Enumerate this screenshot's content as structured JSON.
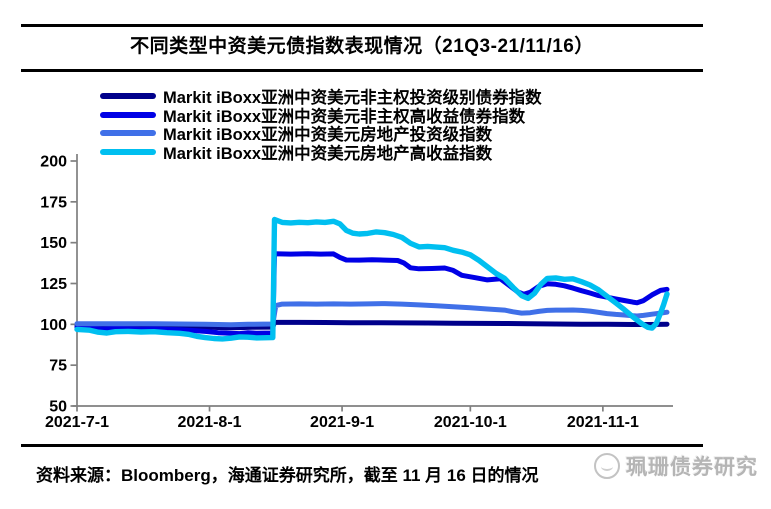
{
  "title": "不同类型中资美元债指数表现情况（21Q3-21/11/16）",
  "footer": {
    "source_text": "资料来源：Bloomberg，海通证券研究所，截至 11 月 16 日的情况"
  },
  "watermark": {
    "text": "珮珊债券研究"
  },
  "chart_data": {
    "type": "line",
    "title": "不同类型中资美元债指数表现情况（21Q3-21/11/16）",
    "xlabel": "",
    "ylabel": "",
    "ylim": [
      50,
      200
    ],
    "y_ticks": [
      200,
      175,
      150,
      125,
      100,
      75,
      50
    ],
    "x_unit": "days since 2021-07-01",
    "x_max": 138,
    "x_ticks": [
      {
        "label": "2021-7-1",
        "day": 0
      },
      {
        "label": "2021-8-1",
        "day": 31
      },
      {
        "label": "2021-9-1",
        "day": 62
      },
      {
        "label": "2021-10-1",
        "day": 92
      },
      {
        "label": "2021-11-1",
        "day": 123
      }
    ],
    "grid": false,
    "legend_position": "top-left",
    "axis_color": "#7f7f7f",
    "series": [
      {
        "name": "Markit iBoxx亚洲中资美元非主权投资级别债券指数",
        "color": "#00008B",
        "points": [
          [
            0,
            99
          ],
          [
            4,
            98.8
          ],
          [
            8,
            98.4
          ],
          [
            12,
            98.9
          ],
          [
            16,
            99
          ],
          [
            20,
            98.9
          ],
          [
            24,
            98.7
          ],
          [
            28,
            98.5
          ],
          [
            32,
            98.1
          ],
          [
            35,
            97.9
          ],
          [
            38,
            98
          ],
          [
            41,
            98.2
          ],
          [
            45.8,
            98.3
          ],
          [
            46.2,
            101.2
          ],
          [
            52,
            101.2
          ],
          [
            58,
            101.1
          ],
          [
            64,
            101
          ],
          [
            70,
            101
          ],
          [
            76,
            100.9
          ],
          [
            82,
            100.8
          ],
          [
            88,
            100.7
          ],
          [
            94,
            100.6
          ],
          [
            100,
            100.5
          ],
          [
            106,
            100.3
          ],
          [
            112,
            100.2
          ],
          [
            118,
            100.1
          ],
          [
            124,
            100
          ],
          [
            130,
            99.9
          ],
          [
            134,
            99.9
          ],
          [
            138,
            100.1
          ]
        ]
      },
      {
        "name": "Markit iBoxx亚洲中资美元非主权高收益债券指数",
        "color": "#0000E6",
        "points": [
          [
            0,
            98.2
          ],
          [
            3,
            97.9
          ],
          [
            6,
            97.1
          ],
          [
            9,
            97.5
          ],
          [
            12,
            97.3
          ],
          [
            15,
            97.1
          ],
          [
            18,
            97.2
          ],
          [
            21,
            96.9
          ],
          [
            24,
            96.7
          ],
          [
            27,
            96.2
          ],
          [
            30,
            95.7
          ],
          [
            33,
            94.9
          ],
          [
            36,
            94.5
          ],
          [
            38,
            94.3
          ],
          [
            40,
            94.9
          ],
          [
            42,
            94.5
          ],
          [
            45.8,
            94.7
          ],
          [
            46.2,
            143.2
          ],
          [
            50,
            143
          ],
          [
            54,
            143.2
          ],
          [
            57,
            143
          ],
          [
            60,
            143.1
          ],
          [
            61.5,
            141
          ],
          [
            63,
            139.4
          ],
          [
            66,
            139.3
          ],
          [
            69,
            139.6
          ],
          [
            72,
            139.3
          ],
          [
            75,
            139.1
          ],
          [
            76.5,
            137.5
          ],
          [
            78,
            134.6
          ],
          [
            80,
            134
          ],
          [
            83,
            134.2
          ],
          [
            86,
            134.5
          ],
          [
            88,
            133
          ],
          [
            90,
            130
          ],
          [
            93,
            128.6
          ],
          [
            96,
            127.2
          ],
          [
            99,
            127.9
          ],
          [
            101,
            124
          ],
          [
            103,
            120
          ],
          [
            104.5,
            118.4
          ],
          [
            106,
            119.6
          ],
          [
            108,
            123.2
          ],
          [
            110,
            124.9
          ],
          [
            112,
            124.5
          ],
          [
            114,
            123.6
          ],
          [
            116,
            122.2
          ],
          [
            118,
            120.6
          ],
          [
            120,
            119.2
          ],
          [
            122,
            117.6
          ],
          [
            124,
            116.6
          ],
          [
            126,
            115.6
          ],
          [
            128,
            114.6
          ],
          [
            130,
            113.6
          ],
          [
            131,
            113.2
          ],
          [
            132.5,
            114.5
          ],
          [
            134.5,
            118
          ],
          [
            136.5,
            120.8
          ],
          [
            138,
            121.4
          ]
        ]
      },
      {
        "name": "Markit iBoxx亚洲中资美元房地产投资级指数",
        "color": "#4070E8",
        "points": [
          [
            0,
            100.4
          ],
          [
            6,
            100.3
          ],
          [
            12,
            100.4
          ],
          [
            18,
            100.3
          ],
          [
            24,
            100.2
          ],
          [
            30,
            100
          ],
          [
            36,
            99.8
          ],
          [
            40,
            100
          ],
          [
            45.8,
            100.2
          ],
          [
            46.5,
            111.5
          ],
          [
            48,
            112.4
          ],
          [
            52,
            112.5
          ],
          [
            56,
            112.4
          ],
          [
            60,
            112.5
          ],
          [
            64,
            112.4
          ],
          [
            68,
            112.5
          ],
          [
            72,
            112.7
          ],
          [
            76,
            112.4
          ],
          [
            80,
            111.9
          ],
          [
            84,
            111.4
          ],
          [
            88,
            110.8
          ],
          [
            92,
            110.2
          ],
          [
            96,
            109.4
          ],
          [
            100,
            108.7
          ],
          [
            102,
            107.7
          ],
          [
            104,
            106.9
          ],
          [
            106,
            107.1
          ],
          [
            108,
            107.9
          ],
          [
            110,
            108.5
          ],
          [
            112,
            108.7
          ],
          [
            114,
            108.7
          ],
          [
            116,
            108.8
          ],
          [
            118,
            108.5
          ],
          [
            120,
            108.1
          ],
          [
            122,
            107.3
          ],
          [
            124,
            106.6
          ],
          [
            126,
            106.1
          ],
          [
            128,
            105.7
          ],
          [
            130,
            105.3
          ],
          [
            131,
            105.1
          ],
          [
            132.5,
            105.5
          ],
          [
            134.5,
            106.2
          ],
          [
            136.5,
            106.9
          ],
          [
            138,
            107.4
          ]
        ]
      },
      {
        "name": "Markit iBoxx亚洲中资美元房地产高收益指数",
        "color": "#00BFF0",
        "points": [
          [
            0,
            96.9
          ],
          [
            3,
            96.4
          ],
          [
            5,
            95.2
          ],
          [
            7,
            94.7
          ],
          [
            9,
            95.5
          ],
          [
            12,
            95.7
          ],
          [
            15,
            95.3
          ],
          [
            18,
            95.5
          ],
          [
            21,
            94.9
          ],
          [
            24,
            94.5
          ],
          [
            26,
            93.9
          ],
          [
            28,
            92.7
          ],
          [
            30,
            91.9
          ],
          [
            32,
            91.3
          ],
          [
            34,
            91.1
          ],
          [
            36,
            91.5
          ],
          [
            38,
            92.3
          ],
          [
            40,
            92.1
          ],
          [
            42,
            91.7
          ],
          [
            45.8,
            91.9
          ],
          [
            46.2,
            164.2
          ],
          [
            48,
            162.4
          ],
          [
            50,
            162.1
          ],
          [
            52,
            162.5
          ],
          [
            54,
            162.2
          ],
          [
            56,
            162.7
          ],
          [
            58,
            162.4
          ],
          [
            60,
            163.1
          ],
          [
            61.5,
            161.5
          ],
          [
            63,
            157.5
          ],
          [
            64.5,
            155.8
          ],
          [
            66,
            155.3
          ],
          [
            68,
            155.7
          ],
          [
            70,
            156.6
          ],
          [
            72,
            156.1
          ],
          [
            74,
            155
          ],
          [
            76,
            153.2
          ],
          [
            78,
            149.6
          ],
          [
            80,
            147.4
          ],
          [
            82,
            147.7
          ],
          [
            84,
            147.3
          ],
          [
            86,
            146.9
          ],
          [
            88,
            145.3
          ],
          [
            90,
            144.2
          ],
          [
            92,
            142.6
          ],
          [
            94,
            139.2
          ],
          [
            96,
            135.2
          ],
          [
            98,
            131.2
          ],
          [
            100,
            128.2
          ],
          [
            102,
            122.6
          ],
          [
            104,
            117.6
          ],
          [
            105.5,
            115.9
          ],
          [
            107,
            119
          ],
          [
            108.5,
            124.5
          ],
          [
            110,
            128.1
          ],
          [
            112,
            128.4
          ],
          [
            114,
            127.6
          ],
          [
            116,
            127.9
          ],
          [
            118,
            126.1
          ],
          [
            120,
            124.1
          ],
          [
            122,
            121.1
          ],
          [
            124,
            117.1
          ],
          [
            126,
            113.1
          ],
          [
            128,
            109.1
          ],
          [
            130,
            104.6
          ],
          [
            132,
            100.6
          ],
          [
            133.5,
            98.2
          ],
          [
            134.5,
            97.7
          ],
          [
            135.5,
            100.5
          ],
          [
            136.5,
            107
          ],
          [
            137.2,
            112
          ],
          [
            138,
            118.6
          ]
        ]
      }
    ]
  }
}
